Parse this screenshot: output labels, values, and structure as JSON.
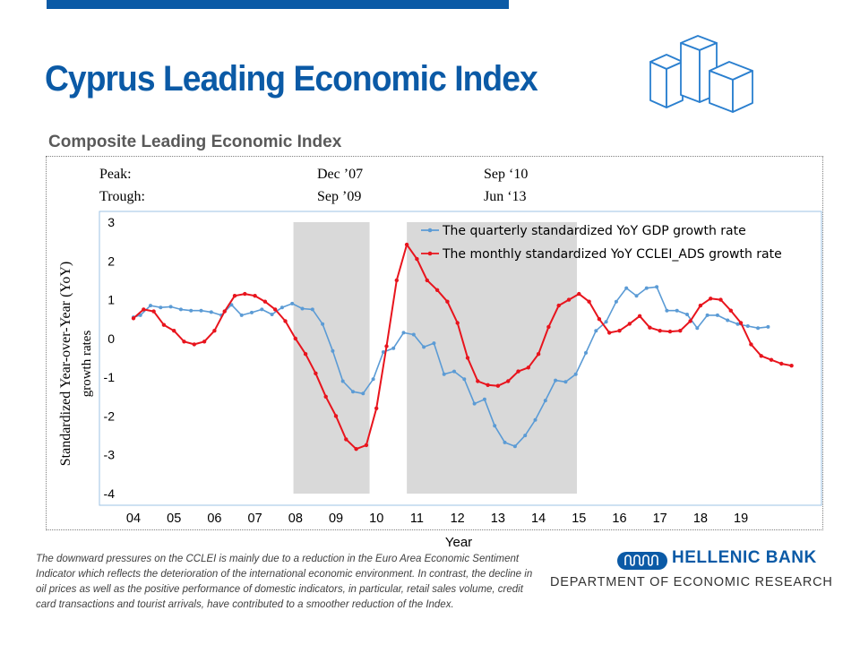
{
  "header": {
    "title": "Cyprus Leading Economic Index",
    "subtitle": "Composite Leading Economic Index"
  },
  "turning_points": {
    "peak_label": "Peak:",
    "trough_label": "Trough:",
    "peak1": "Dec ’07",
    "trough1": "Sep ’09",
    "peak2": "Sep ‘10",
    "trough2": "Jun ‘13"
  },
  "chart_data": {
    "type": "line",
    "xlabel": "Year",
    "ylabel_line1": "Standardized Year-over-Year (YoY)",
    "ylabel_line2": "growth rates",
    "xlim": [
      2004,
      2020.9
    ],
    "ylim": [
      -4,
      3
    ],
    "yticks": [
      "3",
      "2",
      "1",
      "0",
      "-1",
      "-2",
      "-3",
      "-4"
    ],
    "xticks": [
      {
        "x": 2004,
        "label": "04"
      },
      {
        "x": 2005,
        "label": "05"
      },
      {
        "x": 2006,
        "label": "06"
      },
      {
        "x": 2007,
        "label": "07"
      },
      {
        "x": 2008,
        "label": "08"
      },
      {
        "x": 2009,
        "label": "09"
      },
      {
        "x": 2010,
        "label": "10"
      },
      {
        "x": 2011,
        "label": "11"
      },
      {
        "x": 2012,
        "label": "12"
      },
      {
        "x": 2013,
        "label": "13"
      },
      {
        "x": 2014,
        "label": "14"
      },
      {
        "x": 2015,
        "label": "15"
      },
      {
        "x": 2016,
        "label": "16"
      },
      {
        "x": 2017,
        "label": "17"
      },
      {
        "x": 2018,
        "label": "18"
      },
      {
        "x": 2019,
        "label": "19"
      }
    ],
    "shaded_periods": [
      {
        "start": 2007.95,
        "end": 2009.83
      },
      {
        "start": 2010.75,
        "end": 2014.95
      }
    ],
    "series": [
      {
        "name": "The quarterly standardized YoY GDP growth rate",
        "color": "#5b9bd5",
        "points": [
          [
            2004.0,
            0.55
          ],
          [
            2004.17,
            0.6
          ],
          [
            2004.42,
            0.85
          ],
          [
            2004.67,
            0.8
          ],
          [
            2004.92,
            0.82
          ],
          [
            2005.17,
            0.75
          ],
          [
            2005.42,
            0.72
          ],
          [
            2005.67,
            0.72
          ],
          [
            2005.92,
            0.68
          ],
          [
            2006.17,
            0.6
          ],
          [
            2006.42,
            0.87
          ],
          [
            2006.67,
            0.6
          ],
          [
            2006.92,
            0.67
          ],
          [
            2007.17,
            0.75
          ],
          [
            2007.42,
            0.62
          ],
          [
            2007.67,
            0.8
          ],
          [
            2007.92,
            0.9
          ],
          [
            2008.17,
            0.77
          ],
          [
            2008.42,
            0.75
          ],
          [
            2008.67,
            0.37
          ],
          [
            2008.92,
            -0.32
          ],
          [
            2009.17,
            -1.1
          ],
          [
            2009.42,
            -1.37
          ],
          [
            2009.67,
            -1.42
          ],
          [
            2009.92,
            -1.05
          ],
          [
            2010.17,
            -0.35
          ],
          [
            2010.42,
            -0.25
          ],
          [
            2010.67,
            0.15
          ],
          [
            2010.92,
            0.1
          ],
          [
            2011.17,
            -0.22
          ],
          [
            2011.42,
            -0.12
          ],
          [
            2011.67,
            -0.92
          ],
          [
            2011.92,
            -0.85
          ],
          [
            2012.17,
            -1.05
          ],
          [
            2012.42,
            -1.68
          ],
          [
            2012.67,
            -1.57
          ],
          [
            2012.92,
            -2.25
          ],
          [
            2013.17,
            -2.68
          ],
          [
            2013.42,
            -2.78
          ],
          [
            2013.67,
            -2.5
          ],
          [
            2013.92,
            -2.1
          ],
          [
            2014.17,
            -1.6
          ],
          [
            2014.42,
            -1.08
          ],
          [
            2014.67,
            -1.12
          ],
          [
            2014.92,
            -0.92
          ],
          [
            2015.17,
            -0.37
          ],
          [
            2015.42,
            0.2
          ],
          [
            2015.67,
            0.43
          ],
          [
            2015.92,
            0.95
          ],
          [
            2016.17,
            1.3
          ],
          [
            2016.42,
            1.1
          ],
          [
            2016.67,
            1.3
          ],
          [
            2016.92,
            1.33
          ],
          [
            2017.17,
            0.72
          ],
          [
            2017.42,
            0.72
          ],
          [
            2017.67,
            0.62
          ],
          [
            2017.92,
            0.27
          ],
          [
            2018.17,
            0.6
          ],
          [
            2018.42,
            0.6
          ],
          [
            2018.67,
            0.47
          ],
          [
            2018.92,
            0.37
          ],
          [
            2019.17,
            0.32
          ],
          [
            2019.42,
            0.27
          ],
          [
            2019.67,
            0.3
          ]
        ]
      },
      {
        "name": "The monthly standardized YoY CCLEI_ADS growth rate",
        "color": "#e8141d",
        "points": [
          [
            2004.0,
            0.52
          ],
          [
            2004.25,
            0.75
          ],
          [
            2004.5,
            0.7
          ],
          [
            2004.75,
            0.35
          ],
          [
            2005.0,
            0.2
          ],
          [
            2005.25,
            -0.08
          ],
          [
            2005.5,
            -0.15
          ],
          [
            2005.75,
            -0.08
          ],
          [
            2006.0,
            0.2
          ],
          [
            2006.25,
            0.7
          ],
          [
            2006.5,
            1.1
          ],
          [
            2006.75,
            1.15
          ],
          [
            2007.0,
            1.1
          ],
          [
            2007.25,
            0.95
          ],
          [
            2007.5,
            0.75
          ],
          [
            2007.75,
            0.45
          ],
          [
            2008.0,
            0.0
          ],
          [
            2008.25,
            -0.4
          ],
          [
            2008.5,
            -0.9
          ],
          [
            2008.75,
            -1.5
          ],
          [
            2009.0,
            -2.0
          ],
          [
            2009.25,
            -2.6
          ],
          [
            2009.5,
            -2.85
          ],
          [
            2009.75,
            -2.75
          ],
          [
            2010.0,
            -1.8
          ],
          [
            2010.25,
            -0.2
          ],
          [
            2010.5,
            1.5
          ],
          [
            2010.75,
            2.42
          ],
          [
            2011.0,
            2.05
          ],
          [
            2011.25,
            1.5
          ],
          [
            2011.5,
            1.25
          ],
          [
            2011.75,
            0.95
          ],
          [
            2012.0,
            0.4
          ],
          [
            2012.25,
            -0.5
          ],
          [
            2012.5,
            -1.1
          ],
          [
            2012.75,
            -1.2
          ],
          [
            2013.0,
            -1.22
          ],
          [
            2013.25,
            -1.1
          ],
          [
            2013.5,
            -0.85
          ],
          [
            2013.75,
            -0.75
          ],
          [
            2014.0,
            -0.4
          ],
          [
            2014.25,
            0.3
          ],
          [
            2014.5,
            0.85
          ],
          [
            2014.75,
            1.0
          ],
          [
            2015.0,
            1.15
          ],
          [
            2015.25,
            0.95
          ],
          [
            2015.5,
            0.5
          ],
          [
            2015.75,
            0.15
          ],
          [
            2016.0,
            0.2
          ],
          [
            2016.25,
            0.38
          ],
          [
            2016.5,
            0.58
          ],
          [
            2016.75,
            0.28
          ],
          [
            2017.0,
            0.2
          ],
          [
            2017.25,
            0.18
          ],
          [
            2017.5,
            0.2
          ],
          [
            2017.75,
            0.45
          ],
          [
            2018.0,
            0.85
          ],
          [
            2018.25,
            1.03
          ],
          [
            2018.5,
            1.0
          ],
          [
            2018.75,
            0.72
          ],
          [
            2019.0,
            0.4
          ],
          [
            2019.25,
            -0.15
          ],
          [
            2019.5,
            -0.45
          ],
          [
            2019.75,
            -0.55
          ],
          [
            2020.0,
            -0.65
          ],
          [
            2020.25,
            -0.7
          ]
        ]
      }
    ]
  },
  "footnote": "The downward pressures on the CCLEI is mainly due to a reduction in the Euro Area Economic Sentiment Indicator which reflects the deterioration of the international economic environment. In contrast, the decline in oil prices as well as the positive performance of domestic indicators, in particular, retail sales volume, credit card transactions and tourist arrivals, have contributed to a smoother reduction of the Index.",
  "branding": {
    "bank_name": "HELLENIC BANK",
    "department": "DEPARTMENT OF ECONOMIC RESEARCH",
    "brand_color": "#0b5aa6"
  }
}
